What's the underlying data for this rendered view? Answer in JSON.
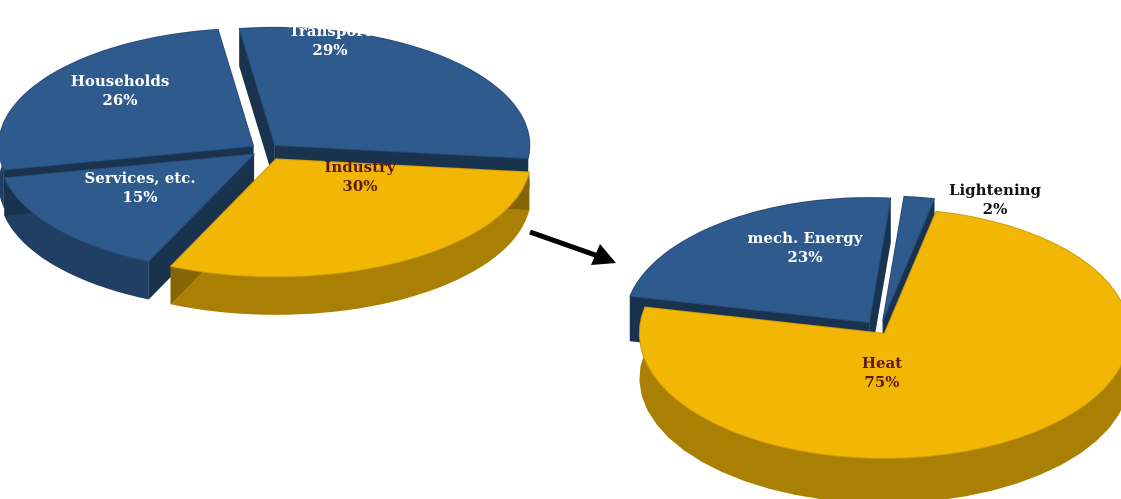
{
  "chart_data": [
    {
      "type": "pie",
      "title": "",
      "style": "3d-exploded",
      "highlight_color": "#f2b705",
      "base_color": "#2e5a8e",
      "slices": [
        {
          "label": "Transport",
          "value_label": "29%",
          "value": 29,
          "color": "#2e5a8e"
        },
        {
          "label": "Industry",
          "value_label": "30%",
          "value": 30,
          "color": "#f2b705",
          "label_color": "#5a1a1a"
        },
        {
          "label": "Services, etc.",
          "value_label": "15%",
          "value": 15,
          "color": "#2e5a8e"
        },
        {
          "label": "Households",
          "value_label": "26%",
          "value": 26,
          "color": "#2e5a8e"
        }
      ]
    },
    {
      "type": "pie",
      "title": "",
      "style": "3d-exploded",
      "slices": [
        {
          "label": "Lightening",
          "value_label": "2%",
          "value": 2,
          "color": "#2e5a8e",
          "label_color": "#111111"
        },
        {
          "label": "Heat",
          "value_label": "75%",
          "value": 75,
          "color": "#f2b705",
          "label_color": "#5a1a1a"
        },
        {
          "label": "mech. Energy",
          "value_label": "23%",
          "value": 23,
          "color": "#2e5a8e"
        }
      ]
    }
  ],
  "arrow": {
    "from": "chart-0-industry-slice",
    "to": "chart-1",
    "color": "#000000"
  }
}
